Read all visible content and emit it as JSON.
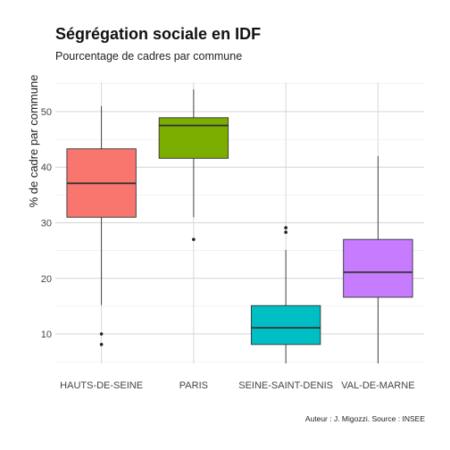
{
  "chart_data": {
    "type": "boxplot",
    "title": "Ségrégation sociale en IDF",
    "subtitle": "Pourcentage de cadres par commune",
    "xlabel": "",
    "ylabel": "% de cadre par commune",
    "caption": "Auteur : J. Migozzi. Source : INSEE",
    "ylim": [
      4.7,
      55.3
    ],
    "yticks": [
      10,
      20,
      30,
      40,
      50
    ],
    "grid": true,
    "legend": "none",
    "categories": [
      "HAUTS-DE-SEINE",
      "PARIS",
      "SEINE-SAINT-DENIS",
      "VAL-DE-MARNE"
    ],
    "boxes": [
      {
        "category": "HAUTS-DE-SEINE",
        "whisker_low": 15.2,
        "q1": 31.0,
        "median": 37.1,
        "q3": 43.3,
        "whisker_high": 51.0,
        "outliers": [
          10.0,
          8.1
        ],
        "color": "#f8766d"
      },
      {
        "category": "PARIS",
        "whisker_low": 31.0,
        "q1": 41.6,
        "median": 47.5,
        "q3": 48.9,
        "whisker_high": 54.0,
        "outliers": [
          27.0
        ],
        "color": "#7cae00"
      },
      {
        "category": "SEINE-SAINT-DENIS",
        "whisker_low": 4.7,
        "q1": 8.1,
        "median": 11.1,
        "q3": 15.1,
        "whisker_high": 25.1,
        "outliers": [
          29.1,
          28.3
        ],
        "color": "#00bfc4"
      },
      {
        "category": "VAL-DE-MARNE",
        "whisker_low": 4.7,
        "q1": 16.6,
        "median": 21.1,
        "q3": 27.0,
        "whisker_high": 42.0,
        "outliers": [],
        "color": "#c77cff"
      }
    ]
  }
}
